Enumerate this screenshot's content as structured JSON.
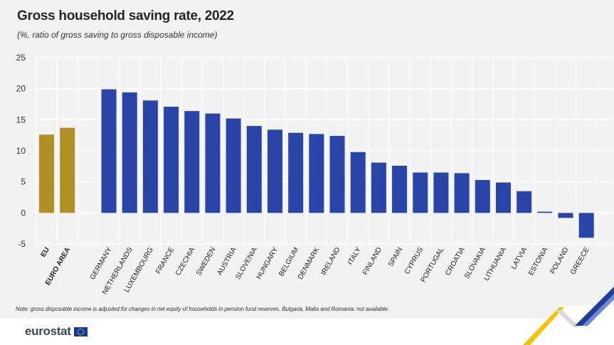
{
  "title": "Gross household saving rate, 2022",
  "subtitle": "(%, ratio of gross saving to gross disposable income)",
  "note": "Note: gross disposable income is adjusted for changes in net equity of households in pension fund reserves. Bulgaria, Malta and Romania: not available.",
  "brand": {
    "name": "eurostat",
    "flag_icon": "eu-flag-icon"
  },
  "colors": {
    "aggregate": "#b09025",
    "country": "#2a45a8",
    "grid": "#ffffff",
    "background": "#f2f2f2"
  },
  "chart_data": {
    "type": "bar",
    "title": "Gross household saving rate, 2022",
    "subtitle": "(%, ratio of gross saving to gross disposable income)",
    "ylim": [
      -5,
      25
    ],
    "yticks": [
      -5,
      0,
      5,
      10,
      15,
      20,
      25
    ],
    "grid": true,
    "series": [
      {
        "group": "aggregate",
        "color": "#b09025",
        "categories": [
          "EU",
          "EURO AREA"
        ],
        "values": [
          12.6,
          13.7
        ]
      },
      {
        "group": "country",
        "color": "#2a45a8",
        "categories": [
          "GERMANY",
          "NETHERLANDS",
          "LUXEMBOURG",
          "FRANCE",
          "CZECHIA",
          "SWEDEN",
          "AUSTRIA",
          "SLOVENIA",
          "HUNGARY",
          "BELGIUM",
          "DENMARK",
          "IRELAND",
          "ITALY",
          "FINLAND",
          "SPAIN",
          "CYPRUS",
          "PORTUGAL",
          "CROATIA",
          "SLOVAKIA",
          "LITHUANIA",
          "LATVIA",
          "ESTONIA",
          "POLAND",
          "GREECE"
        ],
        "values": [
          19.9,
          19.4,
          18.1,
          17.1,
          16.4,
          16.0,
          15.2,
          14.0,
          13.4,
          12.9,
          12.7,
          12.4,
          9.8,
          8.1,
          7.6,
          6.5,
          6.5,
          6.4,
          5.3,
          4.9,
          3.5,
          0.2,
          -0.8,
          -4.0
        ]
      }
    ]
  }
}
